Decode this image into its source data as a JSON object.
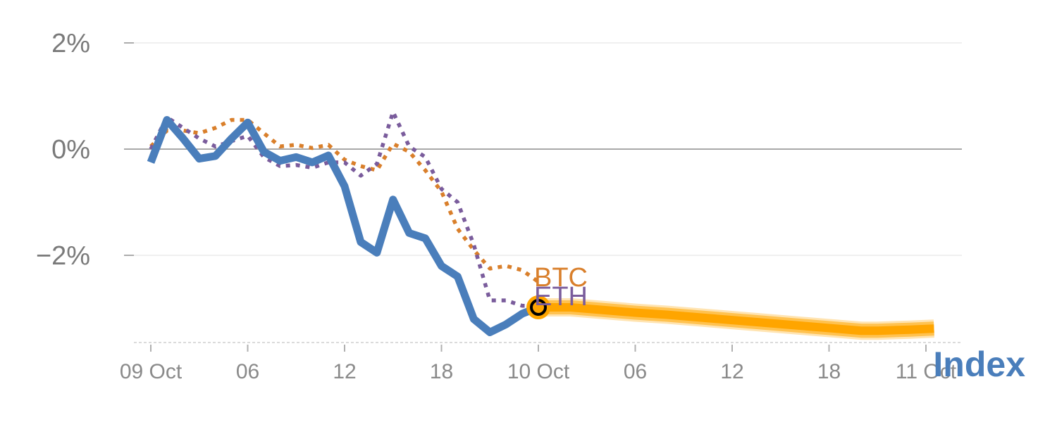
{
  "chart_data": {
    "type": "line",
    "y_ticks": [
      {
        "value": 2,
        "label": "2%"
      },
      {
        "value": 0,
        "label": "0%"
      },
      {
        "value": -2,
        "label": "−2%"
      }
    ],
    "x_ticks": [
      {
        "hour": 0,
        "label": "09 Oct"
      },
      {
        "hour": 6,
        "label": "06"
      },
      {
        "hour": 12,
        "label": "12"
      },
      {
        "hour": 18,
        "label": "18"
      },
      {
        "hour": 24,
        "label": "10 Oct"
      },
      {
        "hour": 30,
        "label": "06"
      },
      {
        "hour": 36,
        "label": "12"
      },
      {
        "hour": 42,
        "label": "18"
      },
      {
        "hour": 48,
        "label": "11 Oct"
      }
    ],
    "x_range": [
      -1,
      50
    ],
    "y_range": [
      -3.6,
      2.3
    ],
    "series": [
      {
        "name": "Index",
        "style": "solid",
        "color": "#4a7ebb",
        "x": [
          0,
          1,
          2,
          3,
          4,
          5,
          6,
          7,
          8,
          9,
          10,
          11,
          12,
          13,
          14,
          15,
          16,
          17,
          18,
          19,
          20,
          21,
          22,
          23,
          24
        ],
        "y": [
          -0.25,
          0.55,
          0.2,
          -0.18,
          -0.13,
          0.2,
          0.5,
          -0.05,
          -0.22,
          -0.15,
          -0.25,
          -0.12,
          -0.7,
          -1.75,
          -1.95,
          -0.95,
          -1.58,
          -1.68,
          -2.2,
          -2.4,
          -3.2,
          -3.45,
          -3.3,
          -3.1,
          -2.98
        ]
      },
      {
        "name": "BTC",
        "style": "dotted",
        "color": "#d97f2b",
        "x": [
          0,
          1,
          2,
          3,
          4,
          5,
          6,
          7,
          8,
          9,
          10,
          11,
          12,
          13,
          14,
          15,
          16,
          17,
          18,
          19,
          20,
          21,
          22,
          23,
          24
        ],
        "y": [
          0.05,
          0.35,
          0.35,
          0.3,
          0.4,
          0.55,
          0.55,
          0.3,
          0.05,
          0.08,
          0.02,
          0.08,
          -0.2,
          -0.32,
          -0.4,
          0.1,
          -0.05,
          -0.4,
          -0.8,
          -1.5,
          -1.9,
          -2.25,
          -2.2,
          -2.28,
          -2.5
        ]
      },
      {
        "name": "ETH",
        "style": "dotted",
        "color": "#7a5c9c",
        "x": [
          0,
          1,
          2,
          3,
          4,
          5,
          6,
          7,
          8,
          9,
          10,
          11,
          12,
          13,
          14,
          15,
          16,
          17,
          18,
          19,
          20,
          21,
          22,
          23,
          24
        ],
        "y": [
          0,
          0.6,
          0.4,
          0.2,
          0.05,
          0.15,
          0.25,
          -0.15,
          -0.32,
          -0.3,
          -0.35,
          -0.25,
          -0.25,
          -0.5,
          -0.28,
          0.7,
          0.05,
          -0.15,
          -0.75,
          -1.0,
          -1.8,
          -2.85,
          -2.85,
          -2.95,
          -2.95
        ]
      }
    ],
    "forecast": {
      "color": "#ffa500",
      "x": [
        24,
        26,
        28,
        30,
        32,
        34,
        36,
        38,
        40,
        42,
        44,
        45,
        47,
        48.5
      ],
      "y": [
        -2.98,
        -2.98,
        -3.03,
        -3.08,
        -3.12,
        -3.17,
        -3.22,
        -3.27,
        -3.32,
        -3.37,
        -3.42,
        -3.42,
        -3.4,
        -3.38
      ]
    },
    "marker": {
      "x": 24,
      "y": -2.98,
      "fill": "#ffa500",
      "ring": "#000000"
    },
    "grid": true,
    "zero_line": true
  }
}
